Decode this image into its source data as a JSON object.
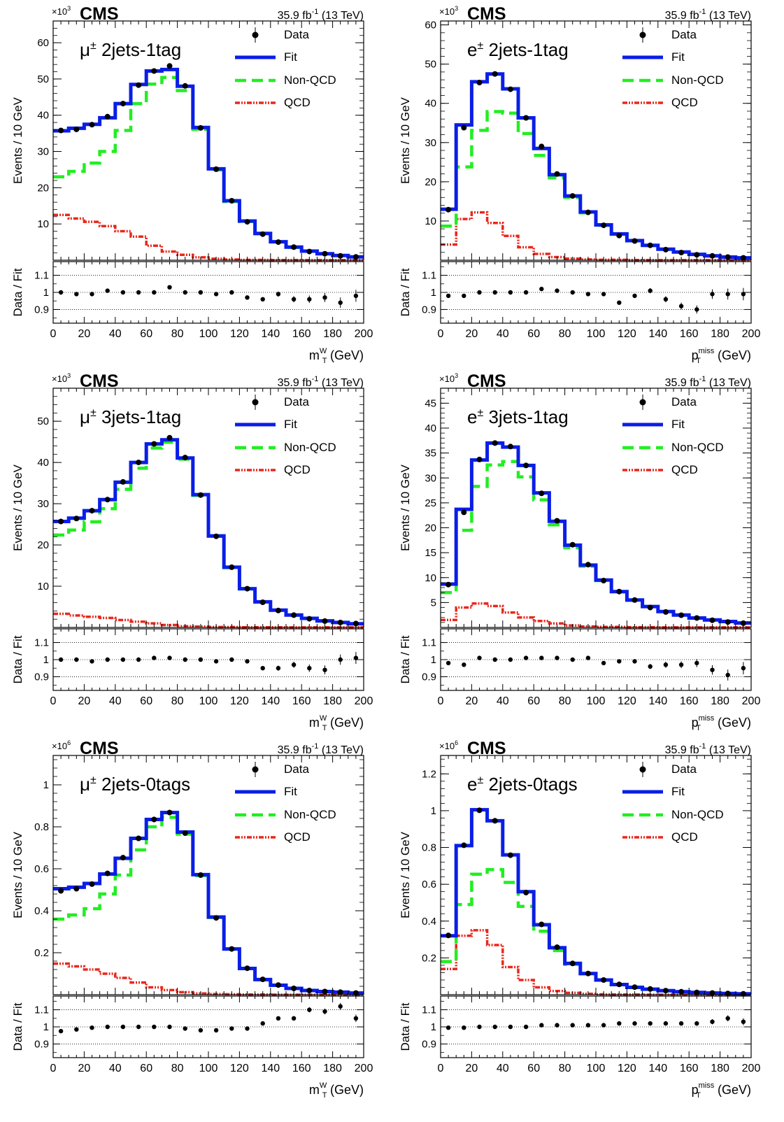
{
  "figure": {
    "experiment": "CMS",
    "lumi": "35.9 fb",
    "lumi_exp": "-1",
    "energy": "(13 TeV)",
    "ratio_ylabel": "Data / Fit",
    "ratio_ticks": [
      "1.1",
      "1",
      "0.9"
    ],
    "legend": [
      "Data",
      "Fit",
      "Non-QCD",
      "QCD"
    ],
    "colors": {
      "fit": "#0a1ee6",
      "nonqcd": "#22ee22",
      "qcd": "#e8271c",
      "data": "#000000"
    }
  },
  "chart_data": [
    {
      "type": "histogram",
      "channel": "μ± 2jets-1tag",
      "channel_lepton": "μ",
      "channel_sup": "±",
      "channel_rest": " 2jets-1tag",
      "xlabel_main": "m",
      "xlabel_sub": "T",
      "xlabel_sup": "W",
      "xlabel_unit": " (GeV)",
      "ylabel": "Events / 10 GeV",
      "multiplier": "×10",
      "multiplier_exp": "3",
      "xlim": [
        0,
        200
      ],
      "ylim": [
        0,
        66
      ],
      "ratio_ylim": [
        0.82,
        1.18
      ],
      "xticks": [
        "0",
        "20",
        "40",
        "60",
        "80",
        "100",
        "120",
        "140",
        "160",
        "180",
        "200"
      ],
      "yticks": [
        10,
        20,
        30,
        40,
        50,
        60
      ],
      "bin_edges": [
        0,
        10,
        20,
        30,
        40,
        50,
        60,
        70,
        80,
        90,
        100,
        110,
        120,
        130,
        140,
        150,
        160,
        170,
        180,
        190,
        200
      ],
      "fit": [
        35.7,
        36.4,
        37.5,
        39.3,
        43.2,
        48.5,
        52.2,
        52.6,
        48,
        36.6,
        25.2,
        16.4,
        10.8,
        7.4,
        5.1,
        3.6,
        2.5,
        1.8,
        1.3,
        0.9
      ],
      "nonqcd": [
        23,
        24.5,
        26.8,
        30,
        35.8,
        43.2,
        48.6,
        50.4,
        46.8,
        36.1,
        24.9,
        16.2,
        10.7,
        7.3,
        5.05,
        3.57,
        2.48,
        1.79,
        1.29,
        0.89
      ],
      "qcd": [
        12.5,
        11.5,
        10.6,
        9.4,
        8.0,
        6.5,
        4.0,
        2.4,
        1.5,
        0.8,
        0.4,
        0.2,
        0.1,
        0.1,
        0.05,
        0.05,
        0.02,
        0.02,
        0.01,
        0.01
      ],
      "data": [
        35.8,
        36.1,
        37.4,
        39.6,
        43.2,
        48.3,
        52.2,
        53.6,
        48.1,
        36.5,
        25.1,
        16.4,
        10.6,
        7.2,
        5.0,
        3.6,
        2.4,
        1.8,
        1.2,
        0.9
      ],
      "ratio": [
        1.0,
        0.99,
        0.99,
        1.01,
        1.0,
        1.0,
        1.0,
        1.03,
        1.0,
        1.0,
        0.99,
        1.0,
        0.97,
        0.96,
        0.99,
        0.96,
        0.96,
        0.97,
        0.94,
        0.98
      ],
      "ratio_err": [
        0.005,
        0.005,
        0.005,
        0.005,
        0.005,
        0.005,
        0.005,
        0.005,
        0.005,
        0.005,
        0.006,
        0.008,
        0.01,
        0.012,
        0.015,
        0.018,
        0.022,
        0.026,
        0.03,
        0.035
      ]
    },
    {
      "type": "histogram",
      "channel": "e± 2jets-1tag",
      "channel_lepton": "e",
      "channel_sup": "±",
      "channel_rest": " 2jets-1tag",
      "xlabel_main": "p",
      "xlabel_sub": "T",
      "xlabel_sup": "miss",
      "xlabel_unit": " (GeV)",
      "ylabel": "Events / 10 GeV",
      "multiplier": "×10",
      "multiplier_exp": "3",
      "xlim": [
        0,
        200
      ],
      "ylim": [
        0,
        61
      ],
      "ratio_ylim": [
        0.82,
        1.18
      ],
      "xticks": [
        "0",
        "20",
        "40",
        "60",
        "80",
        "100",
        "120",
        "140",
        "160",
        "180",
        "200"
      ],
      "yticks": [
        10,
        20,
        30,
        40,
        50,
        60
      ],
      "bin_edges": [
        0,
        10,
        20,
        30,
        40,
        50,
        60,
        70,
        80,
        90,
        100,
        110,
        120,
        130,
        140,
        150,
        160,
        170,
        180,
        190,
        200
      ],
      "fit": [
        13.0,
        34.5,
        45.5,
        47.5,
        43.7,
        36.3,
        28.5,
        21.8,
        16.4,
        12.3,
        9.0,
        6.7,
        5.0,
        3.8,
        2.8,
        2.1,
        1.5,
        1.1,
        0.8,
        0.6
      ],
      "nonqcd": [
        8.7,
        23.8,
        33.1,
        37.9,
        37.5,
        32.3,
        26.7,
        21.0,
        16.0,
        12.1,
        8.9,
        6.6,
        4.95,
        3.75,
        2.78,
        2.09,
        1.49,
        1.1,
        0.8,
        0.6
      ],
      "qcd": [
        4.0,
        10.5,
        12.2,
        9.5,
        6.2,
        3.3,
        1.6,
        0.8,
        0.4,
        0.2,
        0.1,
        0.1,
        0.05,
        0.05,
        0.02,
        0.01,
        0.01,
        0.01,
        0.0,
        0.0
      ],
      "data": [
        12.9,
        33.8,
        45.3,
        47.5,
        43.6,
        36.3,
        29.0,
        22.0,
        16.4,
        12.2,
        8.9,
        6.3,
        4.9,
        3.8,
        2.7,
        1.95,
        1.4,
        1.1,
        0.8,
        0.6
      ],
      "ratio": [
        0.98,
        0.98,
        1.0,
        1.0,
        1.0,
        1.0,
        1.02,
        1.01,
        1.0,
        0.99,
        0.99,
        0.94,
        0.98,
        1.01,
        0.96,
        0.92,
        0.9,
        0.99,
        0.99,
        0.99
      ],
      "ratio_err": [
        0.006,
        0.005,
        0.005,
        0.005,
        0.005,
        0.005,
        0.005,
        0.005,
        0.006,
        0.007,
        0.008,
        0.01,
        0.012,
        0.015,
        0.018,
        0.02,
        0.024,
        0.028,
        0.032,
        0.036
      ]
    },
    {
      "type": "histogram",
      "channel": "μ± 3jets-1tag",
      "channel_lepton": "μ",
      "channel_sup": "±",
      "channel_rest": " 3jets-1tag",
      "xlabel_main": "m",
      "xlabel_sub": "T",
      "xlabel_sup": "W",
      "xlabel_unit": " (GeV)",
      "ylabel": "Events / 10 GeV",
      "multiplier": "×10",
      "multiplier_exp": "3",
      "xlim": [
        0,
        200
      ],
      "ylim": [
        0,
        58
      ],
      "ratio_ylim": [
        0.82,
        1.18
      ],
      "xticks": [
        "0",
        "20",
        "40",
        "60",
        "80",
        "100",
        "120",
        "140",
        "160",
        "180",
        "200"
      ],
      "yticks": [
        10,
        20,
        30,
        40,
        50
      ],
      "bin_edges": [
        0,
        10,
        20,
        30,
        40,
        50,
        60,
        70,
        80,
        90,
        100,
        110,
        120,
        130,
        140,
        150,
        160,
        170,
        180,
        190,
        200
      ],
      "fit": [
        25.7,
        26.5,
        28.3,
        31.0,
        35.2,
        40.0,
        44.5,
        45.5,
        41.1,
        32.2,
        22.2,
        14.6,
        9.4,
        6.2,
        4.2,
        3.0,
        2.2,
        1.6,
        1.2,
        0.9
      ],
      "nonqcd": [
        22.4,
        23.6,
        25.6,
        28.8,
        33.5,
        38.6,
        43.5,
        44.9,
        40.8,
        32.0,
        22.1,
        14.5,
        9.35,
        6.15,
        4.15,
        2.98,
        2.18,
        1.59,
        1.19,
        0.89
      ],
      "qcd": [
        3.3,
        2.9,
        2.6,
        2.3,
        1.8,
        1.4,
        1.0,
        0.6,
        0.3,
        0.2,
        0.1,
        0.1,
        0.05,
        0.05,
        0.05,
        0.02,
        0.02,
        0.01,
        0.01,
        0.01
      ],
      "data": [
        25.7,
        26.4,
        28.3,
        31.0,
        35.3,
        40.0,
        44.5,
        46.0,
        41.2,
        32.1,
        22.1,
        14.6,
        9.4,
        6.1,
        4.1,
        2.98,
        2.1,
        1.55,
        1.2,
        0.95
      ],
      "ratio": [
        1.0,
        1.0,
        0.99,
        1.0,
        1.0,
        1.0,
        1.01,
        1.01,
        1.0,
        1.0,
        0.99,
        1.0,
        0.99,
        0.95,
        0.95,
        0.97,
        0.95,
        0.94,
        1.0,
        1.01
      ],
      "ratio_err": [
        0.005,
        0.005,
        0.005,
        0.005,
        0.005,
        0.005,
        0.005,
        0.005,
        0.005,
        0.005,
        0.006,
        0.008,
        0.01,
        0.012,
        0.015,
        0.018,
        0.022,
        0.026,
        0.03,
        0.035
      ]
    },
    {
      "type": "histogram",
      "channel": "e± 3jets-1tag",
      "channel_lepton": "e",
      "channel_sup": "±",
      "channel_rest": " 3jets-1tag",
      "xlabel_main": "p",
      "xlabel_sub": "T",
      "xlabel_sup": "miss",
      "xlabel_unit": " (GeV)",
      "ylabel": "Events / 10 GeV",
      "multiplier": "×10",
      "multiplier_exp": "3",
      "xlim": [
        0,
        200
      ],
      "ylim": [
        0,
        48
      ],
      "ratio_ylim": [
        0.82,
        1.18
      ],
      "xticks": [
        "0",
        "20",
        "40",
        "60",
        "80",
        "100",
        "120",
        "140",
        "160",
        "180",
        "200"
      ],
      "yticks": [
        5,
        10,
        15,
        20,
        25,
        30,
        35,
        40,
        45
      ],
      "bin_edges": [
        0,
        10,
        20,
        30,
        40,
        50,
        60,
        70,
        80,
        90,
        100,
        110,
        120,
        130,
        140,
        150,
        160,
        170,
        180,
        190,
        200
      ],
      "fit": [
        8.7,
        23.7,
        33.6,
        37.0,
        36.2,
        32.5,
        27.0,
        21.3,
        16.5,
        12.5,
        9.5,
        7.2,
        5.5,
        4.2,
        3.2,
        2.5,
        1.9,
        1.5,
        1.2,
        0.9
      ],
      "nonqcd": [
        7.0,
        19.5,
        28.3,
        32.6,
        33.3,
        30.2,
        25.6,
        20.6,
        16.0,
        12.3,
        9.4,
        7.15,
        5.45,
        4.18,
        3.19,
        2.49,
        1.89,
        1.49,
        1.19,
        0.89
      ],
      "qcd": [
        1.5,
        4.0,
        4.8,
        4.3,
        3.0,
        2.0,
        1.3,
        0.8,
        0.4,
        0.2,
        0.1,
        0.1,
        0.05,
        0.05,
        0.02,
        0.02,
        0.01,
        0.01,
        0.01,
        0.01
      ],
      "data": [
        8.6,
        23.1,
        33.7,
        37.0,
        36.3,
        32.5,
        26.9,
        21.4,
        16.6,
        12.6,
        9.4,
        7.2,
        5.5,
        4.0,
        3.1,
        2.45,
        1.9,
        1.45,
        1.1,
        0.85
      ],
      "ratio": [
        0.98,
        0.97,
        1.01,
        1.0,
        1.0,
        1.01,
        1.01,
        1.01,
        1.0,
        1.01,
        0.98,
        0.99,
        0.99,
        0.96,
        0.97,
        0.97,
        0.98,
        0.94,
        0.91,
        0.95
      ],
      "ratio_err": [
        0.008,
        0.006,
        0.005,
        0.005,
        0.005,
        0.005,
        0.006,
        0.006,
        0.007,
        0.008,
        0.009,
        0.011,
        0.013,
        0.015,
        0.018,
        0.02,
        0.024,
        0.028,
        0.032,
        0.036
      ]
    },
    {
      "type": "histogram",
      "channel": "μ± 2jets-0tags",
      "channel_lepton": "μ",
      "channel_sup": "±",
      "channel_rest": " 2jets-0tags",
      "xlabel_main": "m",
      "xlabel_sub": "T",
      "xlabel_sup": "W",
      "xlabel_unit": " (GeV)",
      "ylabel": "Events / 10 GeV",
      "multiplier": "×10",
      "multiplier_exp": "6",
      "xlim": [
        0,
        200
      ],
      "ylim": [
        0,
        1.14
      ],
      "ratio_ylim": [
        0.82,
        1.18
      ],
      "xticks": [
        "0",
        "20",
        "40",
        "60",
        "80",
        "100",
        "120",
        "140",
        "160",
        "180",
        "200"
      ],
      "yticks": [
        0.2,
        0.4,
        0.6,
        0.8,
        1
      ],
      "bin_edges": [
        0,
        10,
        20,
        30,
        40,
        50,
        60,
        70,
        80,
        90,
        100,
        110,
        120,
        130,
        140,
        150,
        160,
        170,
        180,
        190,
        200
      ],
      "fit": [
        0.505,
        0.512,
        0.53,
        0.575,
        0.65,
        0.745,
        0.835,
        0.868,
        0.775,
        0.572,
        0.37,
        0.218,
        0.125,
        0.072,
        0.045,
        0.03,
        0.02,
        0.015,
        0.012,
        0.008
      ],
      "nonqcd": [
        0.36,
        0.38,
        0.41,
        0.48,
        0.57,
        0.69,
        0.8,
        0.845,
        0.765,
        0.567,
        0.368,
        0.217,
        0.124,
        0.071,
        0.044,
        0.029,
        0.019,
        0.014,
        0.011,
        0.007
      ],
      "qcd": [
        0.148,
        0.135,
        0.12,
        0.1,
        0.08,
        0.058,
        0.035,
        0.022,
        0.012,
        0.006,
        0.003,
        0.002,
        0.001,
        0.001,
        0.0,
        0.0,
        0.0,
        0.0,
        0.0,
        0.0
      ],
      "data": [
        0.495,
        0.505,
        0.527,
        0.578,
        0.653,
        0.745,
        0.835,
        0.868,
        0.77,
        0.57,
        0.366,
        0.218,
        0.126,
        0.073,
        0.046,
        0.03,
        0.02,
        0.015,
        0.012,
        0.008
      ],
      "ratio": [
        0.975,
        0.985,
        0.995,
        1.0,
        1.0,
        1.0,
        1.0,
        1.0,
        0.99,
        0.98,
        0.98,
        0.99,
        0.99,
        1.02,
        1.05,
        1.05,
        1.1,
        1.09,
        1.12,
        1.05
      ],
      "ratio_err": [
        0.004,
        0.004,
        0.004,
        0.004,
        0.004,
        0.004,
        0.004,
        0.004,
        0.004,
        0.004,
        0.005,
        0.006,
        0.007,
        0.009,
        0.011,
        0.013,
        0.015,
        0.017,
        0.02,
        0.022
      ]
    },
    {
      "type": "histogram",
      "channel": "e± 2jets-0tags",
      "channel_lepton": "e",
      "channel_sup": "±",
      "channel_rest": " 2jets-0tags",
      "xlabel_main": "p",
      "xlabel_sub": "T",
      "xlabel_sup": "miss",
      "xlabel_unit": " (GeV)",
      "ylabel": "Events / 10 GeV",
      "multiplier": "×10",
      "multiplier_exp": "6",
      "xlim": [
        0,
        200
      ],
      "ylim": [
        0,
        1.3
      ],
      "ratio_ylim": [
        0.82,
        1.18
      ],
      "xticks": [
        "0",
        "20",
        "40",
        "60",
        "80",
        "100",
        "120",
        "140",
        "160",
        "180",
        "200"
      ],
      "yticks": [
        0.2,
        0.4,
        0.6,
        0.8,
        1,
        1.2
      ],
      "bin_edges": [
        0,
        10,
        20,
        30,
        40,
        50,
        60,
        70,
        80,
        90,
        100,
        110,
        120,
        130,
        140,
        150,
        160,
        170,
        180,
        190,
        200
      ],
      "fit": [
        0.32,
        0.81,
        1.005,
        0.945,
        0.76,
        0.56,
        0.38,
        0.255,
        0.17,
        0.115,
        0.08,
        0.055,
        0.04,
        0.03,
        0.022,
        0.016,
        0.012,
        0.009,
        0.007,
        0.005
      ],
      "nonqcd": [
        0.18,
        0.49,
        0.655,
        0.68,
        0.61,
        0.48,
        0.345,
        0.24,
        0.165,
        0.113,
        0.079,
        0.054,
        0.039,
        0.029,
        0.021,
        0.015,
        0.011,
        0.008,
        0.006,
        0.004
      ],
      "qcd": [
        0.14,
        0.32,
        0.35,
        0.27,
        0.15,
        0.08,
        0.04,
        0.02,
        0.01,
        0.005,
        0.002,
        0.001,
        0.001,
        0.0,
        0.0,
        0.0,
        0.0,
        0.0,
        0.0,
        0.0
      ],
      "data": [
        0.322,
        0.812,
        1.002,
        0.945,
        0.758,
        0.555,
        0.382,
        0.258,
        0.17,
        0.115,
        0.08,
        0.056,
        0.041,
        0.031,
        0.022,
        0.016,
        0.012,
        0.009,
        0.007,
        0.005
      ],
      "ratio": [
        0.995,
        0.995,
        1.0,
        1.0,
        1.0,
        1.0,
        1.01,
        1.01,
        1.01,
        1.01,
        1.01,
        1.02,
        1.02,
        1.02,
        1.02,
        1.02,
        1.02,
        1.03,
        1.05,
        1.03
      ],
      "ratio_err": [
        0.004,
        0.004,
        0.004,
        0.004,
        0.004,
        0.004,
        0.004,
        0.004,
        0.005,
        0.005,
        0.006,
        0.006,
        0.007,
        0.008,
        0.009,
        0.011,
        0.013,
        0.015,
        0.018,
        0.02
      ]
    }
  ]
}
